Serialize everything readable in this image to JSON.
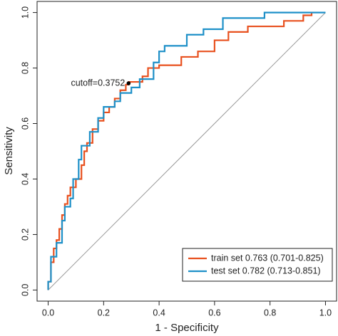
{
  "chart_data": {
    "type": "line",
    "x_label": "1 - Specificity",
    "y_label": "Sensitivity",
    "xlim": [
      -0.04,
      1.04
    ],
    "ylim": [
      -0.04,
      1.04
    ],
    "xticks": [
      {
        "value": 0,
        "label": "0.0"
      },
      {
        "value": 0.2,
        "label": "0.2"
      },
      {
        "value": 0.4,
        "label": "0.4"
      },
      {
        "value": 0.6,
        "label": "0.6"
      },
      {
        "value": 0.8,
        "label": "0.8"
      },
      {
        "value": 1,
        "label": "1.0"
      }
    ],
    "yticks": [
      {
        "value": 0,
        "label": "0.0"
      },
      {
        "value": 0.2,
        "label": "0.2"
      },
      {
        "value": 0.4,
        "label": "0.4"
      },
      {
        "value": 0.6,
        "label": "0.6"
      },
      {
        "value": 0.8,
        "label": "0.8"
      },
      {
        "value": 1,
        "label": "1.0"
      }
    ],
    "legend": "bottom-right",
    "series": [
      {
        "name": "train set 0.763 (0.701-0.825)",
        "color": "#e8501e",
        "x": [
          0,
          0,
          0.01,
          0.01,
          0.02,
          0.02,
          0.03,
          0.03,
          0.04,
          0.04,
          0.05,
          0.05,
          0.06,
          0.06,
          0.07,
          0.07,
          0.08,
          0.08,
          0.1,
          0.1,
          0.12,
          0.12,
          0.13,
          0.13,
          0.14,
          0.14,
          0.16,
          0.16,
          0.18,
          0.18,
          0.2,
          0.2,
          0.22,
          0.22,
          0.24,
          0.24,
          0.26,
          0.26,
          0.28,
          0.28,
          0.29,
          0.29,
          0.34,
          0.34,
          0.36,
          0.36,
          0.4,
          0.4,
          0.48,
          0.48,
          0.54,
          0.54,
          0.6,
          0.6,
          0.65,
          0.65,
          0.72,
          0.72,
          0.85,
          0.85,
          0.92,
          0.92,
          0.95,
          0.95
        ],
        "values": [
          0,
          0.03,
          0.03,
          0.1,
          0.1,
          0.15,
          0.15,
          0.18,
          0.18,
          0.22,
          0.22,
          0.27,
          0.27,
          0.31,
          0.31,
          0.34,
          0.34,
          0.37,
          0.37,
          0.4,
          0.4,
          0.45,
          0.45,
          0.5,
          0.5,
          0.53,
          0.53,
          0.58,
          0.58,
          0.61,
          0.61,
          0.64,
          0.64,
          0.66,
          0.66,
          0.69,
          0.69,
          0.72,
          0.72,
          0.74,
          0.74,
          0.75,
          0.75,
          0.77,
          0.77,
          0.8,
          0.8,
          0.81,
          0.81,
          0.84,
          0.84,
          0.86,
          0.86,
          0.9,
          0.9,
          0.93,
          0.93,
          0.95,
          0.95,
          0.97,
          0.97,
          0.99,
          0.99,
          1
        ]
      },
      {
        "name": "test set 0.782 (0.713-0.851)",
        "color": "#1e90c8",
        "x": [
          0,
          0,
          0.01,
          0.01,
          0.03,
          0.03,
          0.05,
          0.05,
          0.06,
          0.06,
          0.08,
          0.08,
          0.09,
          0.09,
          0.11,
          0.11,
          0.12,
          0.12,
          0.15,
          0.15,
          0.18,
          0.18,
          0.2,
          0.2,
          0.24,
          0.24,
          0.26,
          0.26,
          0.3,
          0.3,
          0.33,
          0.33,
          0.38,
          0.38,
          0.4,
          0.4,
          0.42,
          0.42,
          0.5,
          0.5,
          0.56,
          0.56,
          0.63,
          0.63,
          0.78,
          0.78,
          1
        ],
        "values": [
          0,
          0.03,
          0.03,
          0.12,
          0.12,
          0.17,
          0.17,
          0.25,
          0.25,
          0.3,
          0.3,
          0.33,
          0.33,
          0.4,
          0.4,
          0.47,
          0.47,
          0.52,
          0.52,
          0.57,
          0.57,
          0.62,
          0.62,
          0.66,
          0.66,
          0.68,
          0.68,
          0.71,
          0.71,
          0.73,
          0.73,
          0.76,
          0.76,
          0.82,
          0.82,
          0.86,
          0.86,
          0.88,
          0.88,
          0.92,
          0.92,
          0.94,
          0.94,
          0.98,
          0.98,
          1,
          1
        ]
      }
    ],
    "annotations": [
      {
        "text": "cutoff=0.3752",
        "x": 0.29,
        "y": 0.745
      }
    ]
  }
}
